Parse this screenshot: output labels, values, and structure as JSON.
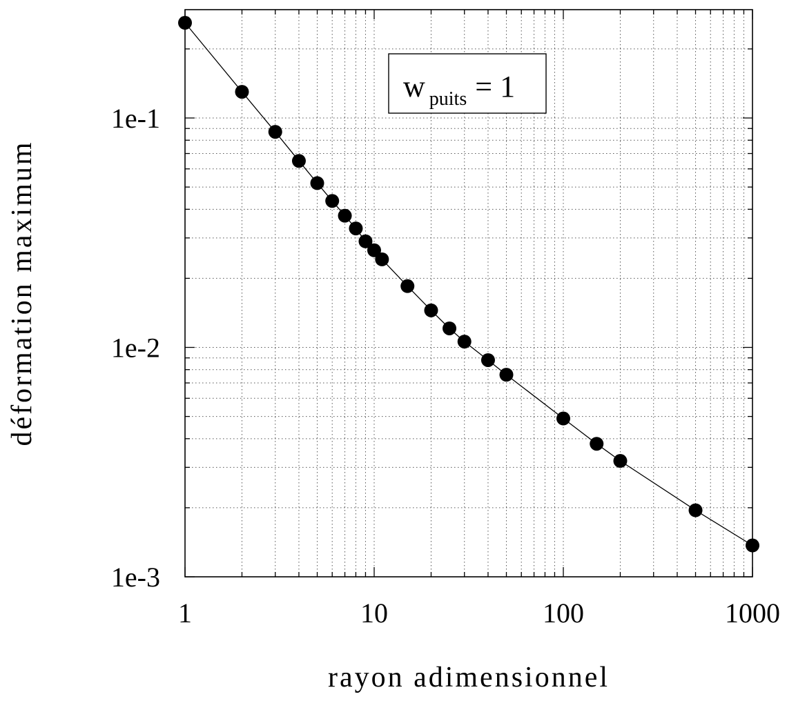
{
  "chart_data": {
    "type": "scatter",
    "xlabel": "rayon adimensionnel",
    "ylabel": "déformation maximum",
    "x_scale": "log",
    "y_scale": "log",
    "xlim": [
      1,
      1000
    ],
    "ylim": [
      0.001,
      0.3
    ],
    "grid": true,
    "x_ticks": [
      {
        "value": 1,
        "label": "1"
      },
      {
        "value": 10,
        "label": "10"
      },
      {
        "value": 100,
        "label": "100"
      },
      {
        "value": 1000,
        "label": "1000"
      }
    ],
    "y_ticks": [
      {
        "value": 0.1,
        "label": "1e-1"
      },
      {
        "value": 0.01,
        "label": "1e-2"
      },
      {
        "value": 0.001,
        "label": "1e-3"
      }
    ],
    "annotation": {
      "text": "w",
      "subscript": "puits",
      "suffix": "= 1",
      "placement": "top-center"
    },
    "series": [
      {
        "points": [
          {
            "x": 1,
            "y": 0.26
          },
          {
            "x": 2,
            "y": 0.13
          },
          {
            "x": 3,
            "y": 0.087
          },
          {
            "x": 4,
            "y": 0.065
          },
          {
            "x": 5,
            "y": 0.052
          },
          {
            "x": 6,
            "y": 0.0435
          },
          {
            "x": 7,
            "y": 0.0375
          },
          {
            "x": 8,
            "y": 0.033
          },
          {
            "x": 9,
            "y": 0.029
          },
          {
            "x": 10,
            "y": 0.0265
          },
          {
            "x": 11,
            "y": 0.0242
          },
          {
            "x": 15,
            "y": 0.0185
          },
          {
            "x": 20,
            "y": 0.0145
          },
          {
            "x": 25,
            "y": 0.0121
          },
          {
            "x": 30,
            "y": 0.0106
          },
          {
            "x": 40,
            "y": 0.0088
          },
          {
            "x": 50,
            "y": 0.0076
          },
          {
            "x": 100,
            "y": 0.0049
          },
          {
            "x": 150,
            "y": 0.0038
          },
          {
            "x": 200,
            "y": 0.0032
          },
          {
            "x": 500,
            "y": 0.00195
          },
          {
            "x": 1000,
            "y": 0.00137
          }
        ]
      }
    ]
  }
}
